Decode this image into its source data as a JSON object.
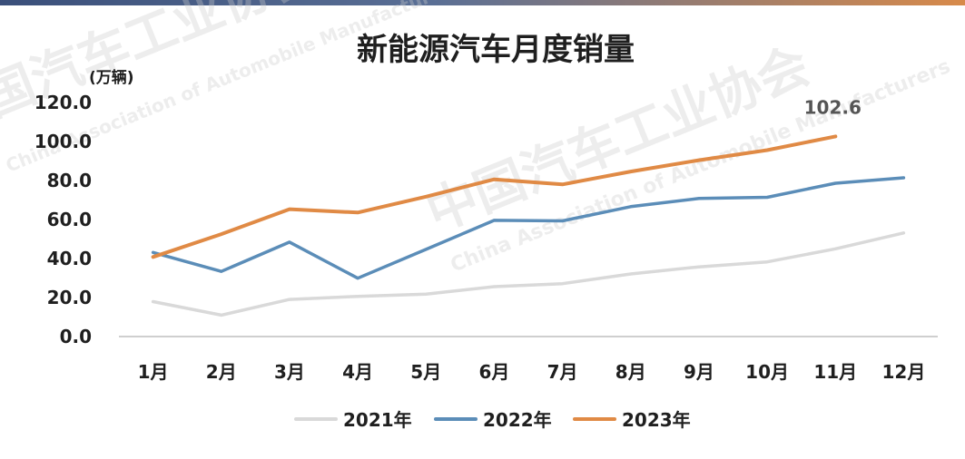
{
  "chart_data": {
    "type": "line",
    "title": "新能源汽车月度销量",
    "ylabel": "(万辆)",
    "xlabel": "",
    "categories": [
      "1月",
      "2月",
      "3月",
      "4月",
      "5月",
      "6月",
      "7月",
      "8月",
      "9月",
      "10月",
      "11月",
      "12月"
    ],
    "ylim": [
      0,
      120
    ],
    "yticks": [
      "0.0",
      "20.0",
      "40.0",
      "60.0",
      "80.0",
      "100.0",
      "120.0"
    ],
    "grid": false,
    "legend_position": "bottom",
    "series": [
      {
        "name": "2021年",
        "color": "#d9d9d9",
        "values": [
          17.9,
          11.0,
          19.0,
          20.6,
          21.7,
          25.6,
          27.1,
          32.1,
          35.7,
          38.3,
          45.0,
          53.1
        ]
      },
      {
        "name": "2022年",
        "color": "#5b8db8",
        "values": [
          43.1,
          33.4,
          48.4,
          29.9,
          44.7,
          59.6,
          59.3,
          66.6,
          70.8,
          71.4,
          78.6,
          81.4
        ]
      },
      {
        "name": "2023年",
        "color": "#e08a45",
        "values": [
          40.8,
          52.5,
          65.3,
          63.6,
          71.7,
          80.6,
          78.0,
          84.6,
          90.4,
          95.6,
          102.6,
          null
        ]
      }
    ],
    "annotations": [
      {
        "series": "2023年",
        "category": "11月",
        "text": "102.6"
      }
    ]
  },
  "watermark": {
    "org_cn": "中国汽车工业协会",
    "org_en": "China Association of Automobile Manufacturers"
  }
}
